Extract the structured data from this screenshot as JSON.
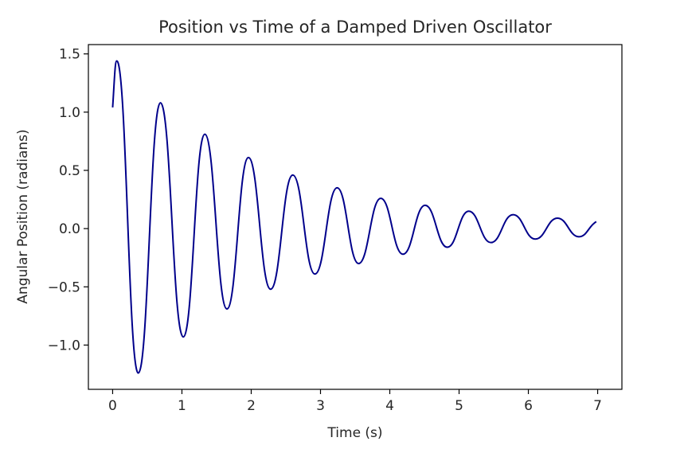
{
  "chart_data": {
    "type": "line",
    "title": "Position vs Time of a Damped Driven Oscillator",
    "xlabel": "Time (s)",
    "ylabel": "Angular Position (radians)",
    "xlim": [
      -0.35,
      7.35
    ],
    "ylim": [
      -1.38,
      1.58
    ],
    "xticks": [
      0,
      1,
      2,
      3,
      4,
      5,
      6,
      7
    ],
    "xtick_labels": [
      "0",
      "1",
      "2",
      "3",
      "4",
      "5",
      "6",
      "7"
    ],
    "yticks": [
      -1.0,
      -0.5,
      0.0,
      0.5,
      1.0,
      1.5
    ],
    "ytick_labels": [
      "−1.0",
      "−0.5",
      "0.0",
      "0.5",
      "1.0",
      "1.5"
    ],
    "grid": false,
    "line_color": "#00008b",
    "series": [
      {
        "name": "",
        "x": [
          0.0,
          0.06,
          0.37,
          0.69,
          1.02,
          1.33,
          1.65,
          1.96,
          2.28,
          2.6,
          2.92,
          3.24,
          3.55,
          3.87,
          4.19,
          4.51,
          4.83,
          5.14,
          5.46,
          5.78,
          6.1,
          6.42,
          6.73,
          6.98
        ],
        "y": [
          1.04,
          1.44,
          -1.24,
          1.08,
          -0.93,
          0.81,
          -0.69,
          0.61,
          -0.52,
          0.46,
          -0.39,
          0.35,
          -0.3,
          0.26,
          -0.22,
          0.2,
          -0.16,
          0.15,
          -0.12,
          0.12,
          -0.09,
          0.09,
          -0.07,
          0.06
        ]
      }
    ]
  }
}
